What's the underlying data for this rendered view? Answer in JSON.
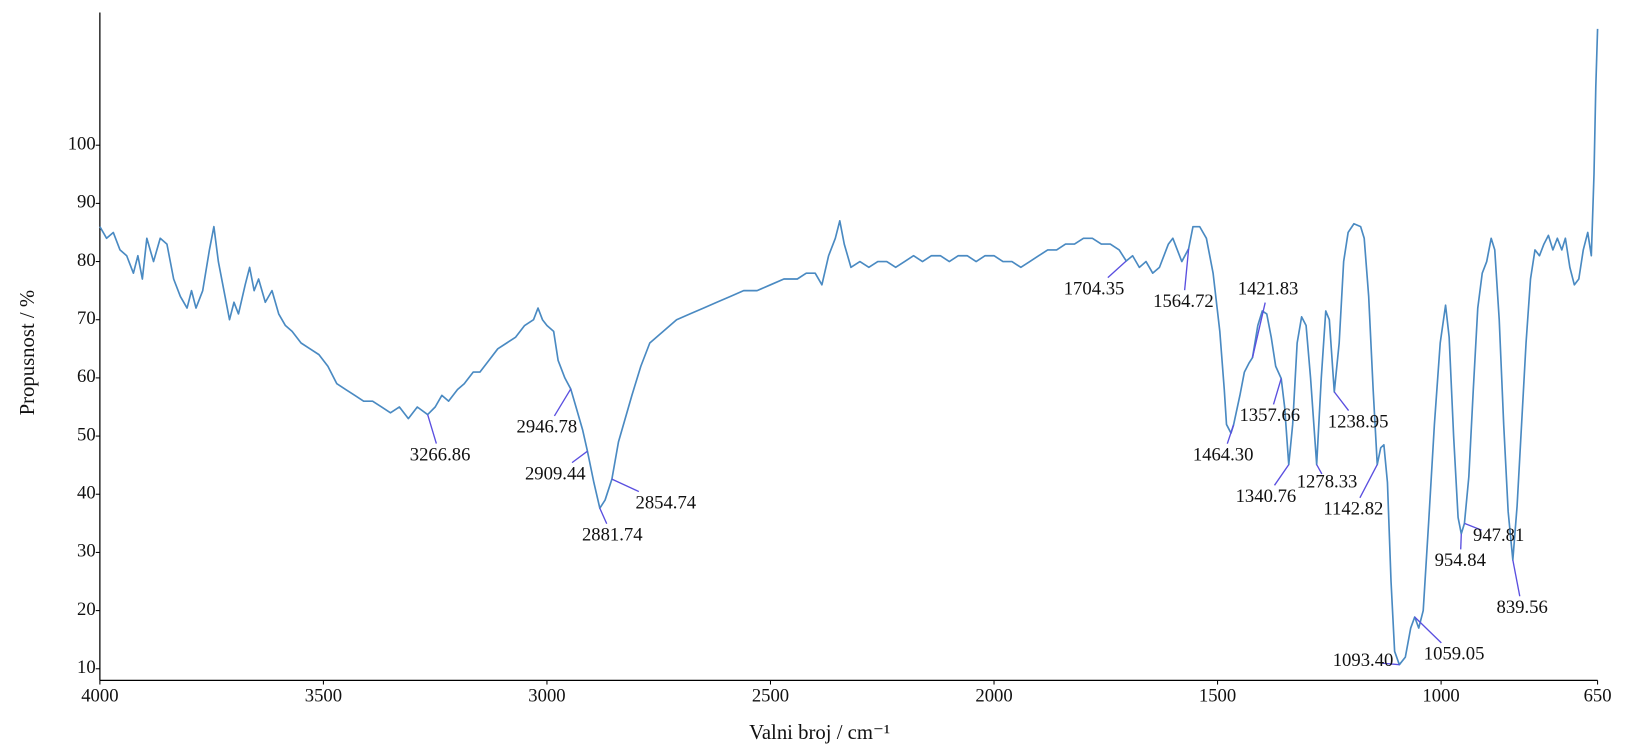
{
  "chart_data": {
    "type": "line",
    "x_label": "Valni broj / cm⁻¹",
    "y_label": "Propusnost / %",
    "color": "#4a8ac2",
    "annotation_color": "#5a4fe0",
    "xlim": [
      4000,
      650
    ],
    "ylim": [
      8,
      123
    ],
    "xticks": [
      4000,
      3500,
      3000,
      2500,
      2000,
      1500,
      1000,
      650
    ],
    "yticks": [
      10,
      20,
      30,
      40,
      50,
      60,
      70,
      80,
      90,
      100
    ],
    "x": [
      4000,
      3985,
      3970,
      3955,
      3940,
      3925,
      3915,
      3905,
      3895,
      3880,
      3865,
      3850,
      3835,
      3820,
      3805,
      3795,
      3785,
      3770,
      3755,
      3745,
      3735,
      3720,
      3710,
      3700,
      3690,
      3675,
      3665,
      3655,
      3645,
      3630,
      3615,
      3600,
      3585,
      3570,
      3550,
      3530,
      3510,
      3490,
      3470,
      3450,
      3430,
      3410,
      3390,
      3370,
      3350,
      3330,
      3310,
      3290,
      3266.86,
      3250,
      3235,
      3220,
      3200,
      3185,
      3165,
      3150,
      3130,
      3110,
      3090,
      3070,
      3050,
      3030,
      3020,
      3010,
      3000,
      2985,
      2975,
      2960,
      2946.78,
      2935,
      2920,
      2909.44,
      2895,
      2881.74,
      2870,
      2854.74,
      2840,
      2825,
      2810,
      2790,
      2770,
      2740,
      2710,
      2680,
      2650,
      2620,
      2590,
      2560,
      2530,
      2500,
      2470,
      2440,
      2420,
      2400,
      2385,
      2370,
      2355,
      2345,
      2335,
      2320,
      2300,
      2280,
      2260,
      2240,
      2220,
      2200,
      2180,
      2160,
      2140,
      2120,
      2100,
      2080,
      2060,
      2040,
      2020,
      2000,
      1980,
      1960,
      1940,
      1920,
      1900,
      1880,
      1860,
      1840,
      1820,
      1800,
      1780,
      1760,
      1740,
      1720,
      1704.35,
      1690,
      1675,
      1660,
      1645,
      1630,
      1610,
      1600,
      1590,
      1580,
      1564.72,
      1555,
      1540,
      1525,
      1510,
      1495,
      1485,
      1480,
      1470,
      1464.3,
      1450,
      1440,
      1430,
      1421.83,
      1410,
      1400,
      1390,
      1380,
      1370,
      1357.66,
      1350,
      1340.76,
      1332,
      1322,
      1312,
      1302,
      1292,
      1278.33,
      1268,
      1258,
      1250,
      1238.95,
      1228,
      1218,
      1208,
      1195,
      1180,
      1172,
      1162,
      1152,
      1142.82,
      1135,
      1128,
      1120,
      1112,
      1104,
      1093.4,
      1080,
      1068,
      1059.05,
      1050,
      1040,
      1028,
      1015,
      1002,
      990,
      982,
      972,
      962,
      954.84,
      947.81,
      938,
      928,
      918,
      908,
      898,
      888,
      880,
      870,
      860,
      850,
      839.56,
      830,
      820,
      810,
      800,
      790,
      780,
      770,
      760,
      750,
      740,
      730,
      722,
      712,
      702,
      692,
      682,
      672,
      664,
      658,
      654,
      650
    ],
    "values": [
      86,
      84,
      85,
      82,
      81,
      78,
      81,
      77,
      84,
      80,
      84,
      83,
      77,
      74,
      72,
      75,
      72,
      75,
      82,
      86,
      80,
      74,
      70,
      73,
      71,
      76,
      79,
      75,
      77,
      73,
      75,
      71,
      69,
      68,
      66,
      65,
      64,
      62,
      59,
      58,
      57,
      56,
      56,
      55,
      54,
      55,
      53,
      55,
      53.7,
      55,
      57,
      56,
      58,
      59,
      61,
      61,
      63,
      65,
      66,
      67,
      69,
      70,
      72,
      70,
      69,
      68,
      63,
      60,
      58.1,
      55,
      51,
      47.4,
      42,
      37.6,
      39,
      42.6,
      49,
      53,
      57,
      62,
      66,
      68,
      70,
      71,
      72,
      73,
      74,
      75,
      75,
      76,
      77,
      77,
      78,
      78,
      76,
      81,
      84,
      87,
      83,
      79,
      80,
      79,
      80,
      80,
      79,
      80,
      81,
      80,
      81,
      81,
      80,
      81,
      81,
      80,
      81,
      81,
      80,
      80,
      79,
      80,
      81,
      82,
      82,
      83,
      83,
      84,
      84,
      83,
      83,
      82,
      80.1,
      81,
      79,
      80,
      78,
      79,
      83,
      84,
      82,
      80,
      82.2,
      86,
      86,
      84,
      78,
      68,
      58,
      52,
      50.5,
      51.9,
      57,
      61,
      62.5,
      63.5,
      69,
      71.5,
      71,
      67,
      62,
      59.9,
      55,
      45.1,
      52,
      66,
      70.5,
      69,
      60,
      45.1,
      60,
      71.5,
      70,
      57.6,
      66,
      80,
      85,
      86.5,
      86,
      84,
      74,
      58,
      45.1,
      48,
      48.5,
      42,
      25,
      13,
      10.7,
      12,
      17,
      18.9,
      17,
      20,
      35,
      52,
      66,
      72.5,
      67,
      50,
      36,
      33.2,
      35,
      43,
      58,
      72,
      78,
      80,
      84,
      82,
      70,
      52,
      37,
      28.7,
      38,
      52,
      66,
      77,
      82,
      81,
      83,
      84.5,
      82,
      84,
      82,
      84,
      79,
      76,
      77,
      82,
      85,
      81,
      95,
      110,
      120
    ],
    "peak_labels": [
      {
        "x": 3266.86,
        "y": 53.7,
        "label": "3266.86"
      },
      {
        "x": 2946.78,
        "y": 58.1,
        "label": "2946.78"
      },
      {
        "x": 2909.44,
        "y": 47.4,
        "label": "2909.44"
      },
      {
        "x": 2881.74,
        "y": 37.6,
        "label": "2881.74"
      },
      {
        "x": 2854.74,
        "y": 42.6,
        "label": "2854.74"
      },
      {
        "x": 1704.35,
        "y": 80.1,
        "label": "1704.35"
      },
      {
        "x": 1564.72,
        "y": 82.2,
        "label": "1564.72"
      },
      {
        "x": 1421.83,
        "y": 63.5,
        "label": "1421.83"
      },
      {
        "x": 1357.66,
        "y": 59.9,
        "label": "1357.66"
      },
      {
        "x": 1464.3,
        "y": 51.9,
        "label": "1464.30"
      },
      {
        "x": 1340.76,
        "y": 45.1,
        "label": "1340.76"
      },
      {
        "x": 1278.33,
        "y": 45.1,
        "label": "1278.33"
      },
      {
        "x": 1238.95,
        "y": 57.6,
        "label": "1238.95"
      },
      {
        "x": 1142.82,
        "y": 45.1,
        "label": "1142.82"
      },
      {
        "x": 1093.4,
        "y": 10.7,
        "label": "1093.40"
      },
      {
        "x": 1059.05,
        "y": 18.9,
        "label": "1059.05"
      },
      {
        "x": 954.84,
        "y": 33.2,
        "label": "954.84"
      },
      {
        "x": 947.81,
        "y": 35,
        "label": "947.81"
      },
      {
        "x": 839.56,
        "y": 28.7,
        "label": "839.56"
      }
    ]
  }
}
